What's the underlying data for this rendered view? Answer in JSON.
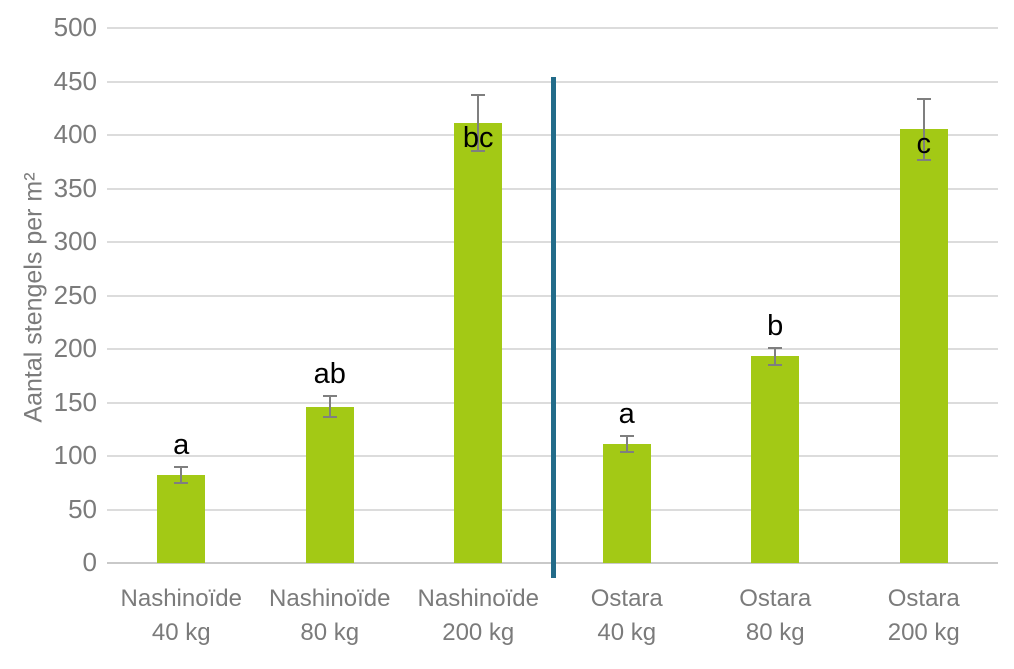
{
  "chart_data": {
    "type": "bar",
    "title": "",
    "xlabel": "",
    "ylabel": "Aantal stengels per m²",
    "ylim": [
      0,
      500
    ],
    "ytick_step": 50,
    "yticks": [
      0,
      50,
      100,
      150,
      200,
      250,
      300,
      350,
      400,
      450,
      500
    ],
    "grid": true,
    "legend": "none",
    "groups": [
      "Nashinoïde",
      "Ostara"
    ],
    "bars": [
      {
        "group": "Nashinoïde",
        "dose": "40 kg",
        "label_line1": "Nashinoïde",
        "label_line2": "40 kg",
        "value": 82,
        "error_low": 75,
        "error_high": 90,
        "sig_label": "a"
      },
      {
        "group": "Nashinoïde",
        "dose": "80 kg",
        "label_line1": "Nashinoïde",
        "label_line2": "80 kg",
        "value": 146,
        "error_low": 136,
        "error_high": 156,
        "sig_label": "ab"
      },
      {
        "group": "Nashinoïde",
        "dose": "200 kg",
        "label_line1": "Nashinoïde",
        "label_line2": "200 kg",
        "value": 411,
        "error_low": 385,
        "error_high": 437,
        "sig_label": "bc"
      },
      {
        "group": "Ostara",
        "dose": "40 kg",
        "label_line1": "Ostara",
        "label_line2": "40 kg",
        "value": 111,
        "error_low": 104,
        "error_high": 119,
        "sig_label": "a"
      },
      {
        "group": "Ostara",
        "dose": "80 kg",
        "label_line1": "Ostara",
        "label_line2": "80 kg",
        "value": 193,
        "error_low": 185,
        "error_high": 201,
        "sig_label": "b"
      },
      {
        "group": "Ostara",
        "dose": "200 kg",
        "label_line1": "Ostara",
        "label_line2": "200 kg",
        "value": 406,
        "error_low": 377,
        "error_high": 434,
        "sig_label": "c"
      }
    ],
    "divider": {
      "description": "vertical line separating Nashinoïde and Ostara groups",
      "color": "#226B89"
    },
    "colors": {
      "bar": "#A3C915",
      "error_bar": "#7F7F7F",
      "gridline": "#DCDCDC",
      "baseline": "#C9C9C9",
      "axis_text": "#7B7B7B",
      "sig_label": "#000000",
      "background": "#FFFFFF"
    }
  }
}
